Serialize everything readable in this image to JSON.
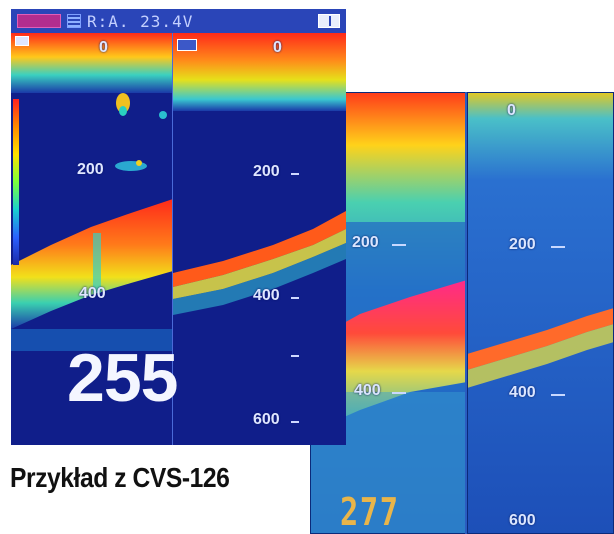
{
  "colors": {
    "strong_echo": "#ff2a1a",
    "medium_echo": "#f7e019",
    "weak_echo": "#19c9d6",
    "background_water": "#1a2aa8",
    "bottom_magenta": "#ff2a8a"
  },
  "screen1": {
    "status_bar": {
      "range_text": "R:A. 23.4V",
      "battery_icon": "battery-icon",
      "split_icon": "split-screen-icon"
    },
    "left_panel": {
      "depth_labels": [
        "0",
        "200",
        "400"
      ],
      "reading": "255"
    },
    "right_panel": {
      "depth_labels": [
        "0",
        "200",
        "400",
        "600"
      ]
    }
  },
  "screen2": {
    "left_panel": {
      "depth_labels": [
        "200",
        "400"
      ],
      "reading": "277"
    },
    "right_panel": {
      "depth_labels": [
        "0",
        "200",
        "400",
        "600"
      ]
    }
  },
  "caption": "Przykład z CVS-126"
}
